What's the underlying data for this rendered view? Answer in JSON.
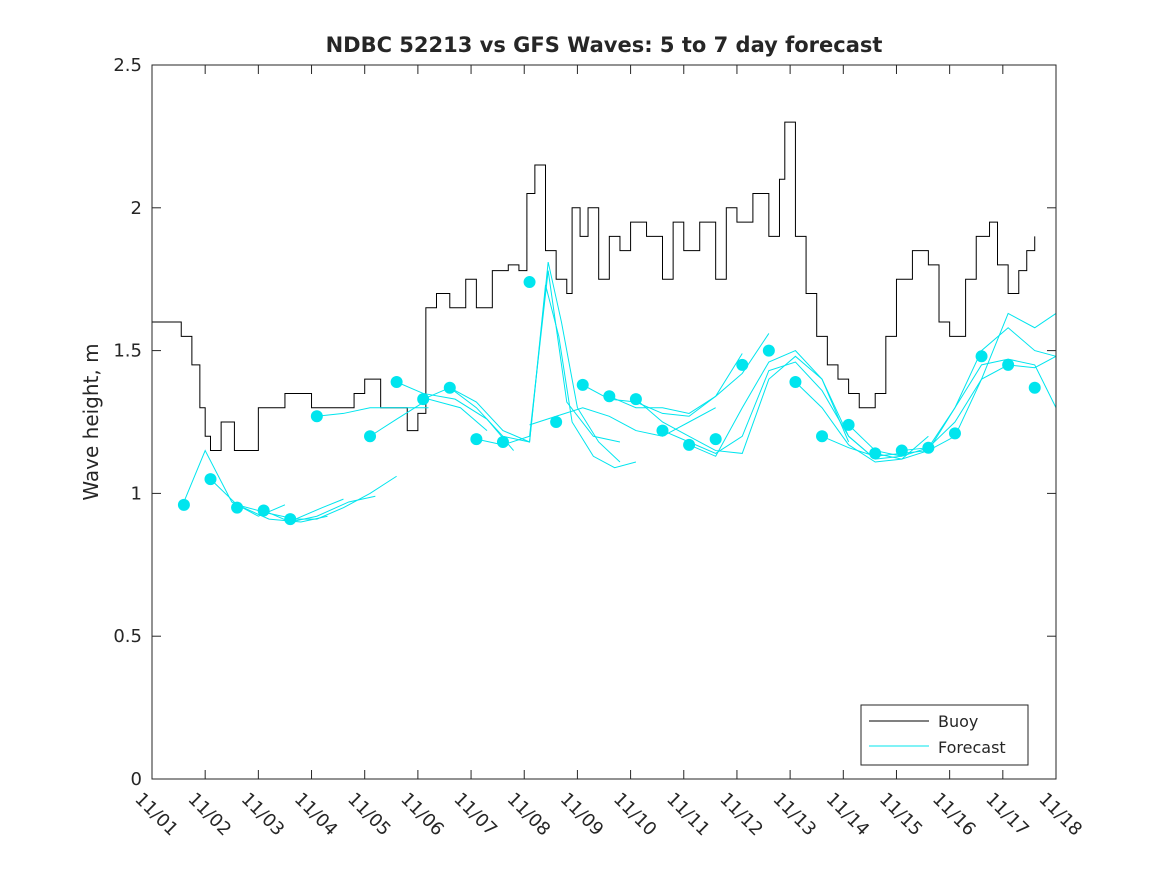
{
  "chart_data": {
    "type": "line",
    "title": "NDBC 52213 vs GFS Waves: 5 to 7 day forecast",
    "xlabel": "",
    "ylabel": "Wave height, m",
    "xlim": [
      0,
      17
    ],
    "ylim": [
      0,
      2.5
    ],
    "yticks": [
      0,
      0.5,
      1,
      1.5,
      2,
      2.5
    ],
    "ytick_labels": [
      "0",
      "0.5",
      "1",
      "1.5",
      "2",
      "2.5"
    ],
    "xtick_labels": [
      "11/01",
      "11/02",
      "11/03",
      "11/04",
      "11/05",
      "11/06",
      "11/07",
      "11/08",
      "11/09",
      "11/10",
      "11/11",
      "11/12",
      "11/13",
      "11/14",
      "11/15",
      "11/16",
      "11/17",
      "11/18"
    ],
    "legend": {
      "position": "bottom-right",
      "entries": [
        {
          "label": "Buoy",
          "color": "#000000"
        },
        {
          "label": "Forecast",
          "color": "#00e5ee"
        }
      ]
    },
    "series": [
      {
        "name": "Buoy",
        "color": "#000000",
        "x": [
          0.0,
          0.3,
          0.55,
          0.75,
          0.9,
          1.0,
          1.1,
          1.3,
          1.55,
          2.0,
          2.5,
          3.0,
          3.4,
          3.8,
          4.0,
          4.3,
          4.7,
          4.8,
          5.0,
          5.15,
          5.35,
          5.6,
          5.9,
          6.1,
          6.4,
          6.7,
          6.9,
          7.05,
          7.2,
          7.4,
          7.6,
          7.8,
          7.9,
          8.05,
          8.2,
          8.4,
          8.6,
          8.8,
          9.0,
          9.3,
          9.6,
          9.8,
          10.0,
          10.3,
          10.6,
          10.8,
          11.0,
          11.3,
          11.6,
          11.8,
          11.9,
          12.1,
          12.3,
          12.5,
          12.7,
          12.9,
          13.1,
          13.3,
          13.6,
          13.8,
          14.0,
          14.3,
          14.6,
          14.8,
          15.0,
          15.3,
          15.5,
          15.75,
          15.9,
          16.1,
          16.3,
          16.45,
          16.6
        ],
        "values": [
          1.6,
          1.6,
          1.55,
          1.45,
          1.3,
          1.2,
          1.15,
          1.25,
          1.15,
          1.3,
          1.35,
          1.3,
          1.3,
          1.35,
          1.4,
          1.3,
          1.3,
          1.22,
          1.28,
          1.65,
          1.7,
          1.65,
          1.75,
          1.65,
          1.78,
          1.8,
          1.78,
          2.05,
          2.15,
          1.85,
          1.75,
          1.7,
          2.0,
          1.9,
          2.0,
          1.75,
          1.9,
          1.85,
          1.95,
          1.9,
          1.75,
          1.95,
          1.85,
          1.95,
          1.75,
          2.0,
          1.95,
          2.05,
          1.9,
          2.1,
          2.3,
          1.9,
          1.7,
          1.55,
          1.45,
          1.4,
          1.35,
          1.3,
          1.35,
          1.55,
          1.75,
          1.85,
          1.8,
          1.6,
          1.55,
          1.75,
          1.9,
          1.95,
          1.8,
          1.7,
          1.78,
          1.85,
          1.9
        ]
      },
      {
        "name": "Forecast",
        "color": "#00e5ee",
        "segments": [
          {
            "x": [
              0.6,
              1.0,
              1.5,
              2.0,
              2.5
            ],
            "values": [
              0.97,
              1.15,
              0.97,
              0.92,
              0.96
            ]
          },
          {
            "x": [
              1.1,
              1.6,
              2.2,
              2.8,
              3.3
            ],
            "values": [
              1.05,
              0.96,
              0.91,
              0.9,
              0.92
            ]
          },
          {
            "x": [
              1.6,
              2.2,
              2.7,
              3.2,
              3.6
            ],
            "values": [
              0.96,
              0.93,
              0.91,
              0.95,
              0.98
            ]
          },
          {
            "x": [
              2.1,
              2.6,
              3.1,
              3.7,
              4.2
            ],
            "values": [
              0.94,
              0.9,
              0.92,
              0.97,
              0.99
            ]
          },
          {
            "x": [
              2.6,
              3.1,
              3.6,
              4.1,
              4.6
            ],
            "values": [
              0.91,
              0.91,
              0.95,
              1.0,
              1.06
            ]
          },
          {
            "x": [
              3.1,
              3.6,
              4.1,
              4.6,
              5.2
            ],
            "values": [
              1.27,
              1.28,
              1.3,
              1.3,
              1.3
            ]
          },
          {
            "x": [
              4.1,
              4.6,
              5.2,
              5.8,
              6.3
            ],
            "values": [
              1.2,
              1.26,
              1.33,
              1.3,
              1.22
            ]
          },
          {
            "x": [
              4.6,
              5.1,
              5.7,
              6.3,
              6.8
            ],
            "values": [
              1.39,
              1.35,
              1.33,
              1.26,
              1.15
            ]
          },
          {
            "x": [
              5.1,
              5.6,
              6.1,
              6.6,
              7.1,
              7.25,
              7.45,
              7.7,
              8.0,
              8.4,
              8.8
            ],
            "values": [
              1.33,
              1.37,
              1.3,
              1.2,
              1.18,
              1.45,
              1.81,
              1.6,
              1.3,
              1.18,
              1.11
            ]
          },
          {
            "x": [
              5.6,
              6.1,
              6.6,
              7.1,
              7.4,
              7.65,
              7.9,
              8.3,
              8.7,
              9.1
            ],
            "values": [
              1.37,
              1.32,
              1.22,
              1.18,
              1.73,
              1.55,
              1.25,
              1.13,
              1.09,
              1.11
            ]
          },
          {
            "x": [
              6.1,
              6.6,
              7.1,
              7.45,
              7.8,
              8.3,
              8.8
            ],
            "values": [
              1.19,
              1.17,
              1.2,
              1.78,
              1.32,
              1.2,
              1.18
            ]
          },
          {
            "x": [
              7.1,
              7.6,
              8.1,
              8.6,
              9.1,
              9.6,
              10.1,
              10.6
            ],
            "values": [
              1.24,
              1.27,
              1.3,
              1.27,
              1.22,
              1.2,
              1.25,
              1.3
            ]
          },
          {
            "x": [
              8.1,
              8.6,
              9.1,
              9.6,
              10.1,
              10.6,
              11.1
            ],
            "values": [
              1.38,
              1.33,
              1.32,
              1.28,
              1.27,
              1.34,
              1.49
            ]
          },
          {
            "x": [
              8.6,
              9.1,
              9.6,
              10.1,
              10.6,
              11.1,
              11.6
            ],
            "values": [
              1.34,
              1.3,
              1.3,
              1.28,
              1.34,
              1.42,
              1.56
            ]
          },
          {
            "x": [
              9.1,
              9.6,
              10.1,
              10.6,
              11.1,
              11.6,
              12.1,
              12.6,
              13.1
            ],
            "values": [
              1.33,
              1.25,
              1.2,
              1.15,
              1.14,
              1.4,
              1.48,
              1.4,
              1.18
            ]
          },
          {
            "x": [
              9.6,
              10.1,
              10.6,
              11.1,
              11.6,
              12.1,
              12.6,
              13.1,
              13.6
            ],
            "values": [
              1.22,
              1.18,
              1.14,
              1.2,
              1.43,
              1.46,
              1.36,
              1.2,
              1.12
            ]
          },
          {
            "x": [
              10.1,
              10.6,
              11.1,
              11.6,
              12.1,
              12.6,
              13.1,
              13.6,
              14.1
            ],
            "values": [
              1.17,
              1.13,
              1.3,
              1.46,
              1.5,
              1.4,
              1.2,
              1.12,
              1.13
            ]
          },
          {
            "x": [
              12.1,
              12.6,
              13.1,
              13.6,
              14.1,
              14.6
            ],
            "values": [
              1.39,
              1.3,
              1.17,
              1.11,
              1.12,
              1.2
            ]
          },
          {
            "x": [
              12.6,
              13.1,
              13.6,
              14.1,
              14.6,
              15.1,
              15.6,
              16.1,
              16.6,
              17.0
            ],
            "values": [
              1.2,
              1.16,
              1.13,
              1.14,
              1.15,
              1.2,
              1.4,
              1.63,
              1.58,
              1.63
            ]
          },
          {
            "x": [
              13.1,
              13.6,
              14.1,
              14.6,
              15.1,
              15.6,
              16.1,
              16.6,
              17.0
            ],
            "values": [
              1.24,
              1.15,
              1.13,
              1.16,
              1.3,
              1.5,
              1.58,
              1.5,
              1.48
            ]
          },
          {
            "x": [
              13.6,
              14.1,
              14.6,
              15.1,
              15.6,
              16.1,
              16.6,
              17.0
            ],
            "values": [
              1.14,
              1.12,
              1.15,
              1.3,
              1.45,
              1.47,
              1.45,
              1.3
            ]
          },
          {
            "x": [
              14.1,
              14.6,
              15.1,
              15.6,
              16.1,
              16.6,
              17.0
            ],
            "values": [
              1.15,
              1.16,
              1.25,
              1.4,
              1.45,
              1.44,
              1.48
            ]
          }
        ],
        "markers": {
          "x": [
            0.6,
            1.1,
            1.6,
            2.1,
            2.6,
            3.1,
            4.1,
            4.6,
            5.1,
            5.6,
            6.1,
            6.6,
            7.1,
            7.6,
            8.1,
            8.6,
            9.1,
            9.6,
            10.1,
            10.6,
            11.1,
            11.6,
            12.1,
            12.6,
            13.1,
            13.6,
            14.1,
            14.6,
            15.1,
            15.6,
            16.1,
            16.6
          ],
          "values": [
            0.96,
            1.05,
            0.95,
            0.94,
            0.91,
            1.27,
            1.2,
            1.39,
            1.33,
            1.37,
            1.19,
            1.18,
            1.74,
            1.25,
            1.38,
            1.34,
            1.33,
            1.22,
            1.17,
            1.19,
            1.45,
            1.5,
            1.39,
            1.2,
            1.24,
            1.14,
            1.15,
            1.16,
            1.21,
            1.48,
            1.45,
            1.37
          ]
        }
      }
    ]
  }
}
